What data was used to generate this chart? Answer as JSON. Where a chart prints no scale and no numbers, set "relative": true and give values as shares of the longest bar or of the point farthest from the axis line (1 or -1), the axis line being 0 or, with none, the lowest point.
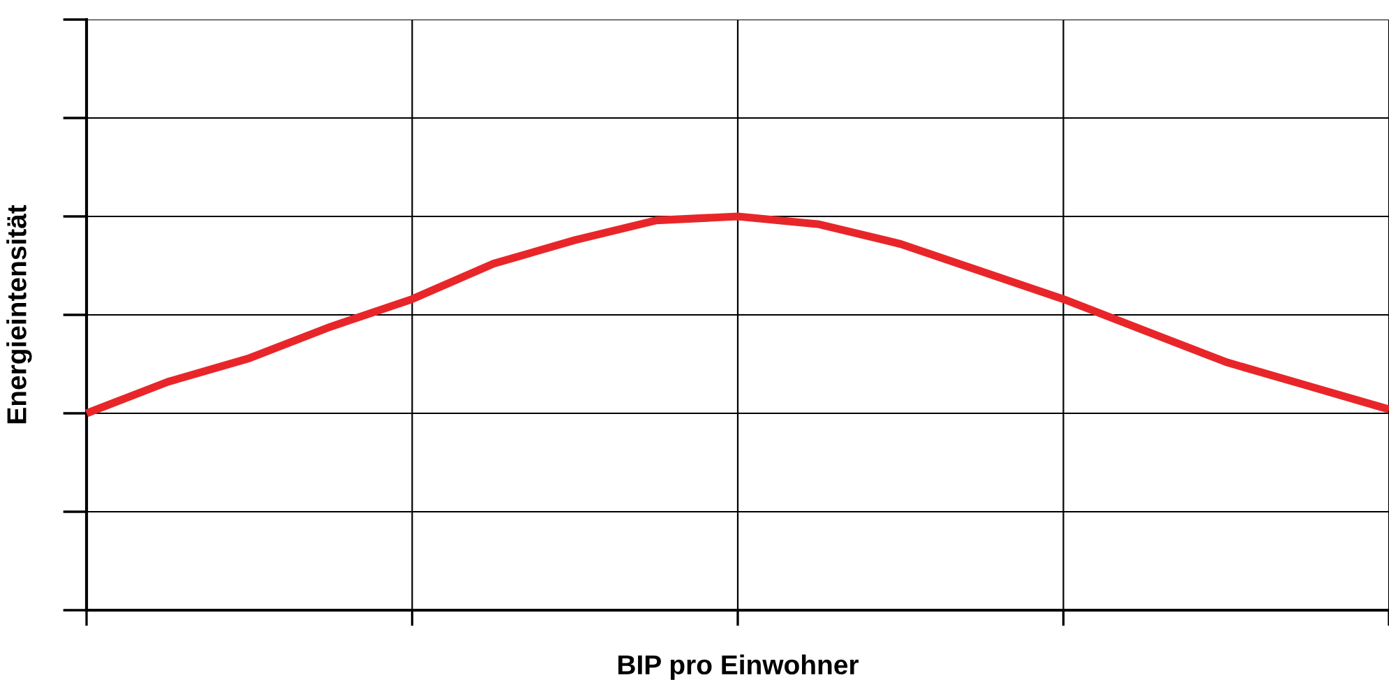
{
  "chart_data": {
    "type": "line",
    "xlabel": "BIP pro Einwohner",
    "ylabel": "Energieintensität",
    "relative": true,
    "categories": [
      null,
      null,
      null,
      null,
      null,
      null,
      null,
      null,
      null,
      null,
      null,
      null,
      null,
      null,
      null,
      null,
      null
    ],
    "series": [
      {
        "color": "#e8262a",
        "values": [
          0.5,
          0.58,
          0.64,
          0.72,
          0.79,
          0.88,
          0.94,
          0.99,
          1,
          0.98,
          0.93,
          0.86,
          0.79,
          0.71,
          0.63,
          0.57,
          0.51
        ]
      }
    ],
    "grid": true,
    "marker": "none",
    "line_style": "solid"
  }
}
